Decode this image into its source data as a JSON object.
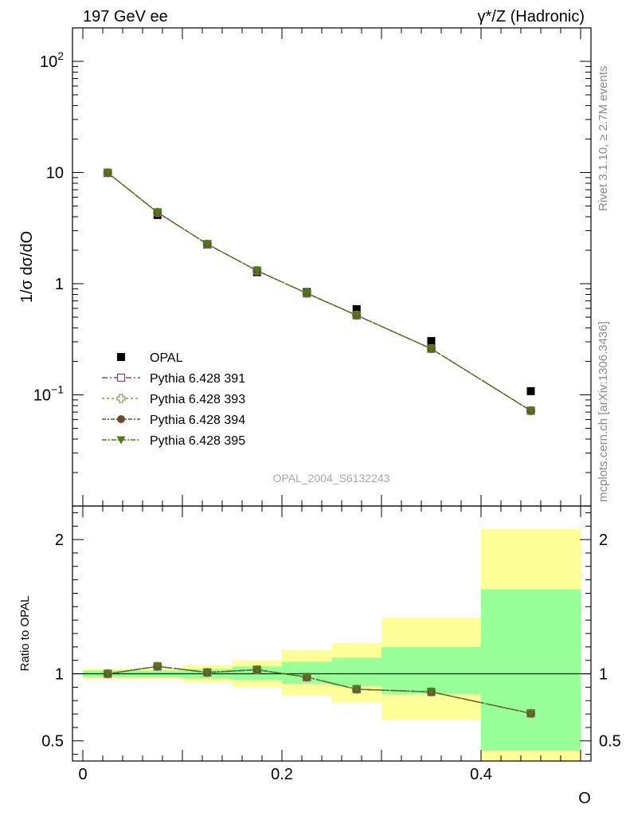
{
  "header": {
    "energy_label": "197 GeV ee",
    "process_label": "γ*/Z (Hadronic)"
  },
  "side_notes": {
    "rivet": "Rivet 3.1.10, ≥ 2.7M events",
    "source": "mcplots.cern.ch [arXiv:1306.3436]"
  },
  "chart_data": [
    {
      "type": "scatter",
      "panel": "main",
      "analysis_label": "OPAL_2004_S6132243",
      "ylabel": "1/σ dσ/dO",
      "xlabel": "O",
      "y_scale": "log",
      "xlim": [
        0,
        0.5
      ],
      "ylim": [
        0.01,
        200
      ],
      "y_tick_labels": [
        {
          "value": 0.1,
          "base": "10",
          "exp": "−1"
        },
        {
          "value": 1,
          "base": "1",
          "exp": ""
        },
        {
          "value": 10,
          "base": "10",
          "exp": ""
        },
        {
          "value": 100,
          "base": "10",
          "exp": "2"
        }
      ],
      "x": [
        0.025,
        0.075,
        0.125,
        0.175,
        0.225,
        0.275,
        0.35,
        0.45
      ],
      "series": [
        {
          "name": "OPAL",
          "marker": "square-filled",
          "color": "#000000",
          "values": [
            9.9,
            4.15,
            2.25,
            1.27,
            0.84,
            0.59,
            0.305,
            0.108
          ]
        },
        {
          "name": "Pythia 6.428 391",
          "marker": "square-open",
          "color": "#7b4f6a",
          "values": [
            9.95,
            4.38,
            2.27,
            1.31,
            0.82,
            0.52,
            0.26,
            0.072
          ]
        },
        {
          "name": "Pythia 6.428 393",
          "marker": "cross-open",
          "color": "#9a8a55",
          "values": [
            9.95,
            4.38,
            2.27,
            1.31,
            0.82,
            0.52,
            0.26,
            0.072
          ]
        },
        {
          "name": "Pythia 6.428 394",
          "marker": "circle-filled",
          "color": "#6b4a2c",
          "values": [
            9.95,
            4.38,
            2.27,
            1.31,
            0.82,
            0.52,
            0.26,
            0.072
          ]
        },
        {
          "name": "Pythia 6.428 395",
          "marker": "triangle-down-filled",
          "color": "#4d7a1c",
          "values": [
            9.95,
            4.38,
            2.27,
            1.31,
            0.82,
            0.52,
            0.26,
            0.072
          ]
        }
      ]
    },
    {
      "type": "scatter",
      "panel": "ratio",
      "ylabel": "Ratio to OPAL",
      "xlabel": "O",
      "xlim": [
        0,
        0.5
      ],
      "ylim": [
        0.35,
        2.25
      ],
      "x_ticks": [
        0,
        0.2,
        0.4
      ],
      "y_ticks": [
        0.5,
        1,
        2
      ],
      "reference": 1,
      "bins": [
        [
          0,
          0.05
        ],
        [
          0.05,
          0.1
        ],
        [
          0.1,
          0.15
        ],
        [
          0.15,
          0.2
        ],
        [
          0.2,
          0.25
        ],
        [
          0.25,
          0.3
        ],
        [
          0.3,
          0.4
        ],
        [
          0.4,
          0.5
        ]
      ],
      "band_inner": [
        [
          0.975,
          1.025
        ],
        [
          0.975,
          1.025
        ],
        [
          0.965,
          1.035
        ],
        [
          0.955,
          1.055
        ],
        [
          0.925,
          1.09
        ],
        [
          0.91,
          1.12
        ],
        [
          0.85,
          1.2
        ],
        [
          0.43,
          1.63
        ]
      ],
      "band_outer": [
        [
          0.96,
          1.04
        ],
        [
          0.96,
          1.04
        ],
        [
          0.935,
          1.065
        ],
        [
          0.9,
          1.1
        ],
        [
          0.84,
          1.18
        ],
        [
          0.79,
          1.23
        ],
        [
          0.66,
          1.42
        ],
        [
          0.35,
          2.08
        ]
      ],
      "band_inner_color": "#99ff99",
      "band_outer_color": "#ffff99",
      "x": [
        0.025,
        0.075,
        0.125,
        0.175,
        0.225,
        0.275,
        0.35,
        0.45
      ],
      "series": [
        {
          "name": "Pythia 6.428 391",
          "values": [
            1.0,
            1.055,
            1.01,
            1.03,
            0.975,
            0.885,
            0.865,
            0.705
          ]
        },
        {
          "name": "Pythia 6.428 393",
          "values": [
            1.0,
            1.055,
            1.01,
            1.03,
            0.975,
            0.885,
            0.865,
            0.705
          ]
        },
        {
          "name": "Pythia 6.428 394",
          "values": [
            1.0,
            1.055,
            1.01,
            1.03,
            0.975,
            0.885,
            0.865,
            0.705
          ]
        },
        {
          "name": "Pythia 6.428 395",
          "values": [
            1.0,
            1.055,
            1.01,
            1.03,
            0.975,
            0.885,
            0.865,
            0.705
          ]
        }
      ]
    }
  ]
}
